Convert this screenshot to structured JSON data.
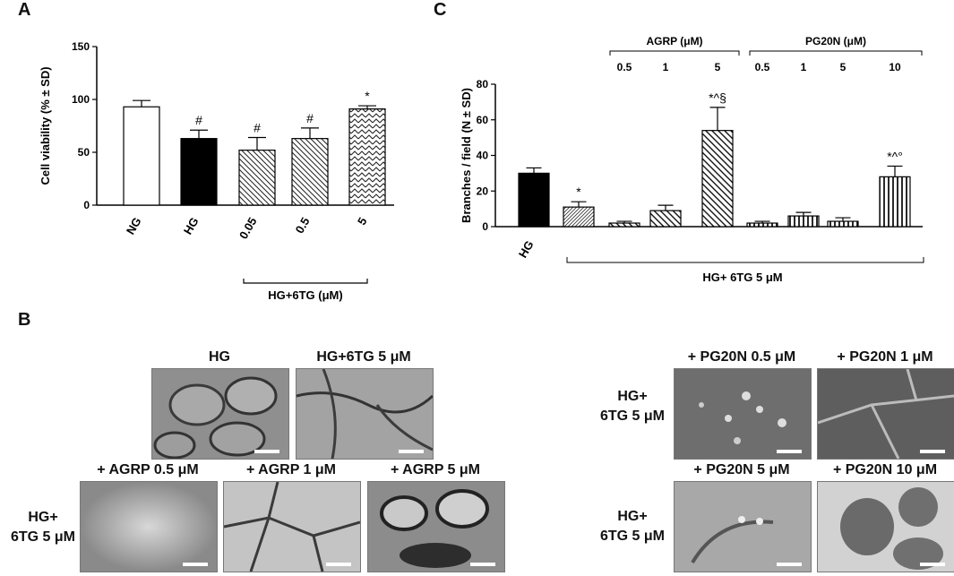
{
  "panels": {
    "a": "A",
    "b": "B",
    "c": "C"
  },
  "chart_data": [
    {
      "type": "bar",
      "panel": "A",
      "ylabel": "Cell viability (% ± SD)",
      "ylim": [
        0,
        150
      ],
      "yticks": [
        "0",
        "50",
        "100",
        "150"
      ],
      "categories": [
        "NG",
        "HG",
        "0.05",
        "0.5",
        "5"
      ],
      "values": [
        93,
        63,
        52,
        63,
        91
      ],
      "errors": [
        6,
        8,
        12,
        10,
        3
      ],
      "patterns": [
        "empty",
        "solid",
        "hatch-back",
        "hatch-back",
        "zigzag"
      ],
      "significance": [
        "",
        "#",
        "#",
        "#",
        "*"
      ],
      "group_label": "HG+6TG (μM)"
    },
    {
      "type": "bar",
      "panel": "C",
      "ylabel": "Branches / field (N ± SD)",
      "ylim": [
        0,
        80
      ],
      "yticks": [
        "0",
        "20",
        "40",
        "60",
        "80"
      ],
      "categories": [
        "HG",
        "",
        "",
        "",
        "",
        "",
        "",
        "",
        ""
      ],
      "values": [
        30,
        11,
        2,
        9,
        54,
        2,
        6,
        3,
        28
      ],
      "errors": [
        3,
        3,
        1,
        3,
        13,
        1,
        2,
        2,
        6
      ],
      "patterns": [
        "solid",
        "fine-hatch",
        "hatch-fwd",
        "hatch-fwd",
        "hatch-fwd",
        "vertical",
        "vertical",
        "vertical",
        "vertical"
      ],
      "significance": [
        "",
        "*",
        "",
        "",
        "*^§",
        "",
        "",
        "",
        "*^°"
      ],
      "groups": [
        {
          "label": "AGRP (μM)",
          "doses": [
            "0.5",
            "1",
            "5"
          ]
        },
        {
          "label": "PG20N (μM)",
          "doses": [
            "0.5",
            "1",
            "5",
            "10"
          ]
        }
      ],
      "bottom_label": "HG+ 6TG 5 μM"
    }
  ],
  "panel_b": {
    "images": [
      {
        "label": "HG"
      },
      {
        "label": "HG+6TG 5 μM"
      },
      {
        "label": "+ AGRP 0.5 μM"
      },
      {
        "label": "+ AGRP 1 μM"
      },
      {
        "label": "+ AGRP 5 μM"
      },
      {
        "label": "+ PG20N 0.5 μM"
      },
      {
        "label": "+ PG20N 1 μM"
      },
      {
        "label": "+ PG20N 5 μM"
      },
      {
        "label": "+ PG20N 10 μM"
      }
    ],
    "row_labels": {
      "agrp_line1": "HG+",
      "agrp_line2": "6TG 5 μM",
      "pg_top_line1": "HG+",
      "pg_top_line2": "6TG 5 μM",
      "pg_bottom_line1": "HG+",
      "pg_bottom_line2": "6TG 5 μM"
    }
  }
}
